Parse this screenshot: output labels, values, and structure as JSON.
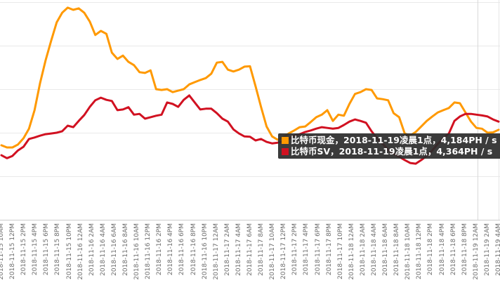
{
  "tooltip": {
    "rows": [
      {
        "series": "比特币现金",
        "color": "#FF9900",
        "label": "比特币现金，2018-11-19凌晨1点，4,184PH / s"
      },
      {
        "series": "比特币SV",
        "color": "#D11121",
        "label": "比特币SV，2018-11-19凌晨1点，4,364PH / s"
      }
    ]
  },
  "chart_data": {
    "type": "line",
    "title": "",
    "xlabel": "",
    "ylabel": "",
    "unit": "PH/s",
    "x_unit": "hour",
    "x_range_text": "hourly from 2018-11-15 10AM to 2018-11-19 4AM",
    "ylim": [
      2950,
      5900
    ],
    "gridline_values": [
      2950,
      3540,
      4130,
      4720,
      5310,
      5900
    ],
    "grid": "horizontal",
    "legend_position": "none (tooltip only)",
    "x_tick_labels": [
      "2018-11-15 10AM",
      "2018-11-15 12PM",
      "2018-11-15 2PM",
      "2018-11-15 4PM",
      "2018-11-15 6PM",
      "2018-11-15 8PM",
      "2018-11-15 10PM",
      "2018-11-16 12AM",
      "2018-11-16 2AM",
      "2018-11-16 4AM",
      "2018-11-16 6AM",
      "2018-11-16 8AM",
      "2018-11-16 10AM",
      "2018-11-16 12PM",
      "2018-11-16 2PM",
      "2018-11-16 4PM",
      "2018-11-16 6PM",
      "2018-11-16 8PM",
      "2018-11-16 10PM",
      "2018-11-17 12AM",
      "2018-11-17 2AM",
      "2018-11-17 4AM",
      "2018-11-17 6AM",
      "2018-11-17 8AM",
      "2018-11-17 10AM",
      "2018-11-17 12PM",
      "2018-11-17 2PM",
      "2018-11-17 4PM",
      "2018-11-17 6PM",
      "2018-11-17 8PM",
      "2018-11-17 10PM",
      "2018-11-18 12AM",
      "2018-11-18 2AM",
      "2018-11-18 4AM",
      "2018-11-18 6AM",
      "2018-11-18 8AM",
      "2018-11-18 10AM",
      "2018-11-18 12PM",
      "2018-11-18 2PM",
      "2018-11-18 4PM",
      "2018-11-18 6PM",
      "2018-11-18 8PM",
      "2018-11-19 12AM",
      "2018-11-19 2AM",
      "2018-11-19 4AM"
    ],
    "highlight": {
      "time": "2018-11-19凌晨1点",
      "crosshair_x_index": 87,
      "values": {
        "比特币现金": "4,184PH / s",
        "比特币SV": "4,364PH / s"
      }
    },
    "series": [
      {
        "name": "比特币现金",
        "color": "#FF9900",
        "values": [
          3960,
          3930,
          3930,
          3970,
          4055,
          4185,
          4435,
          4805,
          5110,
          5375,
          5625,
          5755,
          5825,
          5795,
          5815,
          5755,
          5635,
          5455,
          5510,
          5470,
          5215,
          5130,
          5175,
          5090,
          5045,
          4950,
          4940,
          4975,
          4720,
          4710,
          4720,
          4680,
          4700,
          4720,
          4785,
          4815,
          4845,
          4870,
          4930,
          5080,
          5090,
          4985,
          4960,
          4985,
          5025,
          5030,
          4760,
          4480,
          4215,
          4080,
          4035,
          4065,
          4120,
          4160,
          4205,
          4215,
          4275,
          4340,
          4375,
          4435,
          4290,
          4375,
          4360,
          4520,
          4655,
          4680,
          4720,
          4710,
          4595,
          4585,
          4570,
          4395,
          4340,
          4120,
          4090,
          4140,
          4215,
          4290,
          4350,
          4405,
          4435,
          4465,
          4540,
          4530,
          4405,
          4280,
          4195,
          4184,
          4130,
          4135,
          4170
        ]
      },
      {
        "name": "比特币SV",
        "color": "#D11121",
        "values": [
          3825,
          3785,
          3815,
          3890,
          3940,
          4045,
          4065,
          4090,
          4110,
          4120,
          4130,
          4150,
          4225,
          4205,
          4290,
          4370,
          4480,
          4570,
          4605,
          4575,
          4560,
          4435,
          4445,
          4475,
          4375,
          4385,
          4320,
          4340,
          4360,
          4375,
          4540,
          4520,
          4480,
          4575,
          4635,
          4540,
          4445,
          4455,
          4455,
          4395,
          4320,
          4280,
          4175,
          4120,
          4080,
          4075,
          4025,
          4045,
          4005,
          3985,
          3995,
          4015,
          4045,
          4090,
          4110,
          4140,
          4160,
          4185,
          4205,
          4195,
          4185,
          4195,
          4235,
          4280,
          4310,
          4290,
          4265,
          4150,
          4055,
          3980,
          3900,
          3845,
          3805,
          3760,
          3720,
          3710,
          3760,
          3815,
          3890,
          3980,
          4055,
          4120,
          4290,
          4350,
          4385,
          4385,
          4375,
          4364,
          4350,
          4310,
          4280
        ]
      }
    ]
  }
}
